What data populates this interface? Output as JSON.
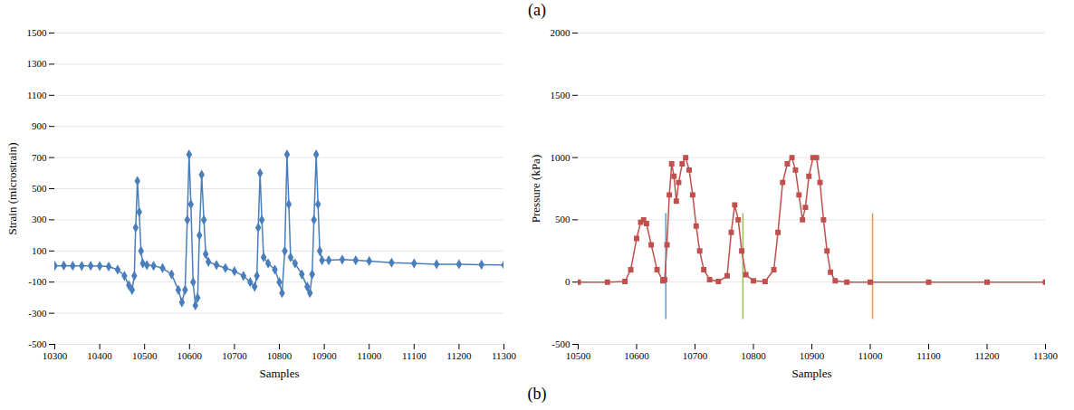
{
  "header": "(a)",
  "footer": "(b)",
  "chart_data": [
    {
      "type": "line",
      "x_label": "Samples",
      "y_label": "Strain (microstrain)",
      "x": [
        10300,
        10320,
        10340,
        10360,
        10380,
        10400,
        10420,
        10440,
        10455,
        10465,
        10472,
        10477,
        10480,
        10484,
        10488,
        10492,
        10496,
        10505,
        10520,
        10540,
        10560,
        10575,
        10583,
        10590,
        10595,
        10599,
        10603,
        10608,
        10613,
        10618,
        10622,
        10627,
        10632,
        10636,
        10642,
        10660,
        10680,
        10700,
        10720,
        10735,
        10745,
        10750,
        10753,
        10757,
        10761,
        10765,
        10775,
        10790,
        10800,
        10806,
        10812,
        10817,
        10821,
        10825,
        10835,
        10850,
        10862,
        10868,
        10873,
        10877,
        10882,
        10886,
        10890,
        10895,
        10910,
        10940,
        10970,
        11000,
        11050,
        11100,
        11150,
        11200,
        11250,
        11300
      ],
      "series": [
        {
          "color": "#4a7ebb",
          "marker": "diamond",
          "line_style": "solid",
          "values": [
            5,
            6,
            5,
            4,
            5,
            3,
            0,
            -20,
            -60,
            -120,
            -150,
            -60,
            250,
            550,
            350,
            100,
            20,
            10,
            5,
            -10,
            -50,
            -150,
            -230,
            -150,
            300,
            720,
            400,
            -100,
            -250,
            -200,
            200,
            590,
            300,
            80,
            30,
            10,
            -10,
            -30,
            -60,
            -100,
            -130,
            -60,
            250,
            600,
            300,
            60,
            20,
            -20,
            -100,
            -170,
            100,
            720,
            400,
            60,
            20,
            -50,
            -130,
            -170,
            -50,
            300,
            720,
            400,
            100,
            40,
            40,
            45,
            40,
            35,
            25,
            20,
            15,
            15,
            12,
            10
          ]
        }
      ],
      "xlim": [
        10300,
        11300
      ],
      "xticks": [
        10300,
        10400,
        10500,
        10600,
        10700,
        10800,
        10900,
        11000,
        11100,
        11200,
        11300
      ],
      "ylim": [
        -500,
        1500
      ],
      "yticks": [
        -500,
        -300,
        -100,
        100,
        300,
        500,
        700,
        900,
        1100,
        1300,
        1500
      ],
      "grid": true
    },
    {
      "type": "line",
      "x_label": "Samples",
      "y_label": "Pressure (kPa)",
      "x": [
        10500,
        10550,
        10580,
        10590,
        10600,
        10607,
        10612,
        10617,
        10625,
        10635,
        10645,
        10648,
        10652,
        10656,
        10660,
        10664,
        10668,
        10672,
        10678,
        10684,
        10690,
        10696,
        10702,
        10708,
        10715,
        10725,
        10740,
        10755,
        10762,
        10768,
        10774,
        10780,
        10787,
        10800,
        10820,
        10835,
        10842,
        10850,
        10858,
        10866,
        10872,
        10878,
        10884,
        10889,
        10895,
        10902,
        10908,
        10914,
        10920,
        10926,
        10932,
        10940,
        10960,
        11000,
        11100,
        11200,
        11300
      ],
      "series": [
        {
          "color": "#c0504d",
          "marker": "square",
          "line_style": "solid",
          "values": [
            0,
            0,
            5,
            100,
            350,
            480,
            500,
            470,
            300,
            100,
            10,
            20,
            300,
            700,
            950,
            850,
            650,
            800,
            950,
            1000,
            900,
            700,
            450,
            250,
            100,
            20,
            5,
            50,
            400,
            620,
            500,
            250,
            60,
            10,
            5,
            100,
            400,
            800,
            950,
            1000,
            900,
            700,
            500,
            600,
            850,
            1000,
            1000,
            800,
            500,
            250,
            80,
            10,
            0,
            0,
            0,
            0,
            0
          ]
        }
      ],
      "vertical_lines": [
        {
          "x": 10650,
          "y": [
            -300,
            550
          ],
          "color": "#5b9bd5"
        },
        {
          "x": 10782,
          "y": [
            -300,
            550
          ],
          "color": "#9bbb59"
        },
        {
          "x": 11004,
          "y": [
            -300,
            550
          ],
          "color": "#f79646"
        }
      ],
      "xlim": [
        10500,
        11300
      ],
      "xticks": [
        10500,
        10600,
        10700,
        10800,
        10900,
        11000,
        11100,
        11200,
        11300
      ],
      "ylim": [
        -500,
        2000
      ],
      "yticks": [
        -500,
        0,
        500,
        1000,
        1500,
        2000
      ],
      "grid": true
    }
  ]
}
